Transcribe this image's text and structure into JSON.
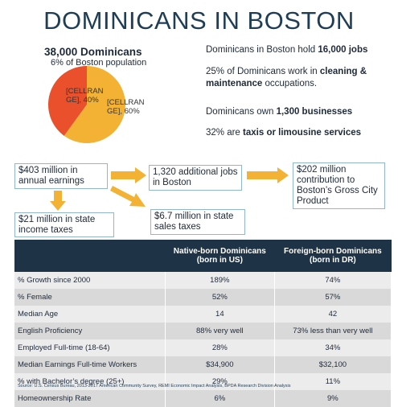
{
  "header": {
    "title": "DOMINICANS IN BOSTON"
  },
  "population": {
    "headline": "38,000 Dominicans",
    "subhead": "6% of Boston population"
  },
  "pie": {
    "slices": [
      {
        "label": "[CELLRANGE], 40%",
        "value": 40,
        "color": "#e9502b"
      },
      {
        "label": "[CELLRANGE], 60%",
        "value": 60,
        "color": "#f3b234"
      }
    ]
  },
  "facts": [
    [
      {
        "text": "Dominicans in Boston hold ",
        "bold": false
      },
      {
        "text": "16,000 jobs",
        "bold": true
      }
    ],
    [
      {
        "text": "25% of Dominicans work in ",
        "bold": false
      },
      {
        "text": "cleaning & maintenance",
        "bold": true
      },
      {
        "text": " occupations.",
        "bold": false
      }
    ],
    [
      {
        "text": "Dominicans own ",
        "bold": false
      },
      {
        "text": "1,300 businesses",
        "bold": true
      }
    ],
    [
      {
        "text": "32% are ",
        "bold": false
      },
      {
        "text": "taxis or limousine services",
        "bold": true
      }
    ]
  ],
  "flow": [
    "$403 million in annual earnings",
    "1,320 additional jobs in Boston",
    "$202 million contribution to Boston’s Gross City Product",
    "$21 million in state income taxes",
    "$6.7 million in state sales taxes"
  ],
  "table": {
    "columns": [
      "",
      "Native-born Dominicans (born in US)",
      "Foreign-born Dominicans (born in DR)"
    ],
    "rows": [
      [
        "% Growth since 2000",
        "189%",
        "74%"
      ],
      [
        "% Female",
        "52%",
        "57%"
      ],
      [
        "Median Age",
        "14",
        "42"
      ],
      [
        "English Proficiency",
        "88% very well",
        "73% less than very well"
      ],
      [
        "Employed Full-time (18-64)",
        "28%",
        "34%"
      ],
      [
        "Median Earnings Full-time Workers",
        "$34,900",
        "$32,100"
      ],
      [
        "% with Bachelor’s degree (25+)",
        "29%",
        "11%"
      ],
      [
        "Homeownership Rate",
        "6%",
        "9%"
      ]
    ]
  },
  "source": "Source: U.S. Census Bureau, 2013-2017 American Community Survey, REMI Economic Impact Analysis, BPDA Research Division Analysis"
}
